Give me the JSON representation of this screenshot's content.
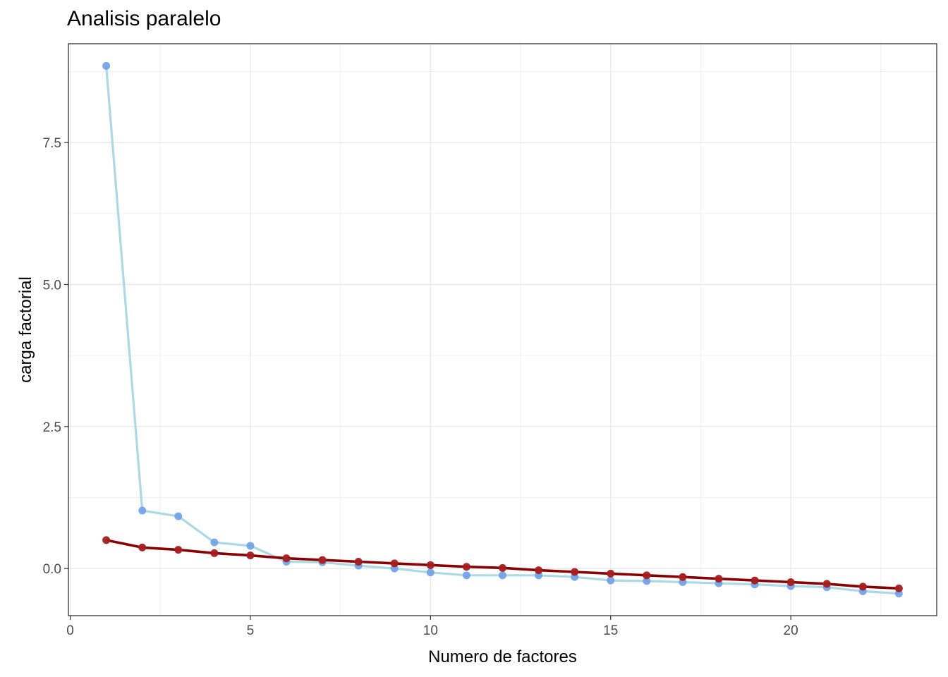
{
  "chart_data": {
    "type": "line",
    "title": "Analisis paralelo",
    "xlabel": "Numero de factores",
    "ylabel": "carga factorial",
    "xlim": [
      -0.05,
      24.05
    ],
    "ylim": [
      -0.83,
      9.24
    ],
    "x_ticks": [
      0,
      5,
      10,
      15,
      20
    ],
    "x_tick_labels": [
      "0",
      "5",
      "10",
      "15",
      "20"
    ],
    "y_ticks": [
      0,
      2.5,
      5,
      7.5
    ],
    "y_tick_labels": [
      "0.0",
      "2.5",
      "5.0",
      "7.5"
    ],
    "grid": true,
    "x": [
      1,
      2,
      3,
      4,
      5,
      6,
      7,
      8,
      9,
      10,
      11,
      12,
      13,
      14,
      15,
      16,
      17,
      18,
      19,
      20,
      21,
      22,
      23
    ],
    "series": [
      {
        "color_line": "#add8e6",
        "color_point": "#6f9fe8",
        "values": [
          8.85,
          1.02,
          0.92,
          0.46,
          0.4,
          0.12,
          0.11,
          0.05,
          0.0,
          -0.07,
          -0.12,
          -0.12,
          -0.12,
          -0.15,
          -0.21,
          -0.22,
          -0.24,
          -0.26,
          -0.28,
          -0.31,
          -0.33,
          -0.4,
          -0.44
        ]
      },
      {
        "color_line": "#8b0000",
        "color_point": "#a51c1c",
        "values": [
          0.5,
          0.37,
          0.33,
          0.27,
          0.23,
          0.18,
          0.15,
          0.12,
          0.09,
          0.06,
          0.03,
          0.01,
          -0.03,
          -0.06,
          -0.09,
          -0.12,
          -0.15,
          -0.18,
          -0.21,
          -0.24,
          -0.27,
          -0.32,
          -0.35
        ]
      }
    ]
  }
}
